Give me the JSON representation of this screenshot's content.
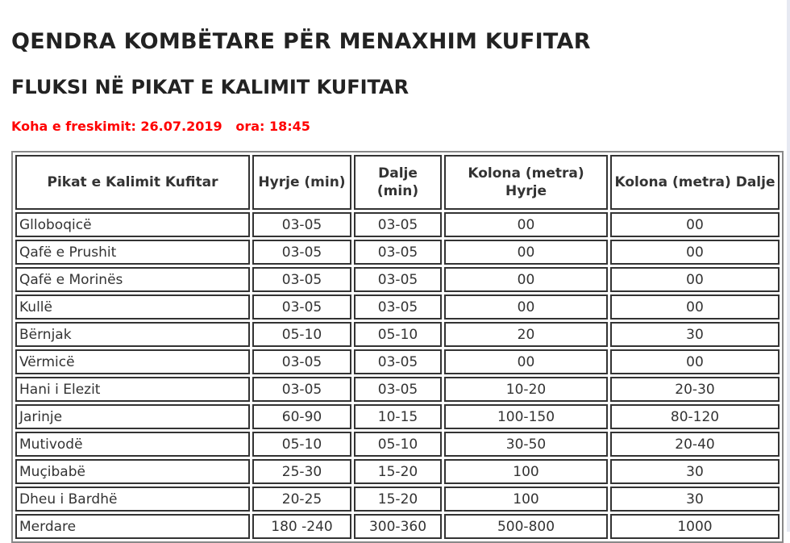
{
  "title": "QENDRA KOMBËTARE PËR MENAXHIM KUFITAR",
  "subtitle": "FLUKSI NË PIKAT E KALIMIT KUFITAR",
  "update": {
    "label": "Koha e freskimit: 26.07.2019",
    "time": "ora: 18:45"
  },
  "table": {
    "headers": [
      "Pikat e Kalimit Kufitar",
      "Hyrje (min)",
      "Dalje (min)",
      "Kolona (metra) Hyrje",
      "Kolona (metra) Dalje"
    ],
    "rows": [
      [
        "Glloboqicë",
        "03-05",
        "03-05",
        "00",
        "00"
      ],
      [
        "Qafë e Prushit",
        "03-05",
        "03-05",
        "00",
        "00"
      ],
      [
        "Qafë e Morinës",
        "03-05",
        "03-05",
        "00",
        "00"
      ],
      [
        "Kullë",
        "03-05",
        "03-05",
        "00",
        "00"
      ],
      [
        "Bërnjak",
        "05-10",
        "05-10",
        "20",
        "30"
      ],
      [
        "Vërmicë",
        "03-05",
        "03-05",
        "00",
        "00"
      ],
      [
        "Hani i Elezit",
        "03-05",
        "03-05",
        "10-20",
        "20-30"
      ],
      [
        "Jarinje",
        "60-90",
        "10-15",
        "100-150",
        "80-120"
      ],
      [
        "Mutivodë",
        "05-10",
        "05-10",
        "30-50",
        "20-40"
      ],
      [
        "Muçibabë",
        "25-30",
        "15-20",
        "100",
        "30"
      ],
      [
        "Dheu i Bardhë",
        "20-25",
        "15-20",
        "100",
        "30"
      ],
      [
        "Merdare",
        "180 -240",
        "300-360",
        "500-800",
        "1000"
      ]
    ]
  }
}
